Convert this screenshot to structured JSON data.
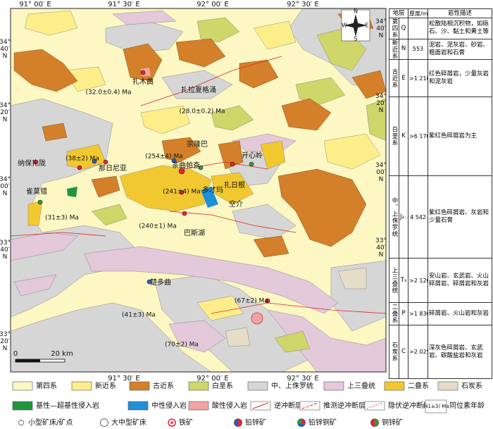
{
  "map": {
    "top_ticks": [
      "91° 00′ E",
      "91° 30′ E",
      "92° 00′ E",
      "92° 30′ E"
    ],
    "bottom_ticks": [
      "91° 30′ E",
      "92° 00′ E",
      "92° 30′ E"
    ],
    "left_ticks": [
      "34° 40′ N",
      "34° 20′ N",
      "34° 00′ N",
      "33° 40′ N",
      "33° 20′ N"
    ],
    "right_ticks": [
      "34° 40′ N",
      "34° 20′ N",
      "34° 00′ N",
      "33° 40′ N"
    ],
    "places": [
      "扎木曲",
      "扎拉夏格涌",
      "宗隆巴",
      "茶曲帕查",
      "那日尼亚",
      "纳保扎陇",
      "雀莫错",
      "多才玛",
      "开心岭",
      "扎日根",
      "空介",
      "巴斯湖",
      "楚多曲"
    ],
    "ages": [
      "(32.0±0.4) Ma",
      "(28.0±0.2) Ma",
      "(38±2) Ma",
      "(254±4) Ma",
      "(241±4) Ma",
      "(31±3) Ma",
      "(240±1) Ma",
      "(67±2) Ma",
      "(41±3) Ma",
      "(70±2) Ma"
    ],
    "scale": {
      "zero": "0",
      "label": "20 km"
    },
    "compass": {
      "n": "N",
      "s": "S",
      "w": "W",
      "e": "E"
    }
  },
  "table": {
    "header": {
      "strata": "地层",
      "thickness": "厚度/m",
      "lithology": "岩性描述"
    },
    "rows": [
      {
        "unit": "第四系",
        "code": "Q",
        "description": "松散陆相沉积物，如砾石、沙、黏土和黄土等"
      },
      {
        "unit": "新近系",
        "code": "N",
        "thickness": "553",
        "description": "泥岩、泥灰岩、砂岩、粗面岩和石膏"
      },
      {
        "unit": "古近系",
        "code": "E",
        "thickness": ">1 210",
        "description": "红色碎屑岩，少量灰岩和泥灰岩"
      },
      {
        "unit": "白垩系",
        "code": "K",
        "thickness": ">6 170",
        "description": "紫红色碎屑岩为主"
      },
      {
        "unit": "中、上侏罗统",
        "code": "J₂₋₃",
        "thickness": "4 542",
        "description": "紫红色碎屑岩、灰岩和少量石膏"
      },
      {
        "unit": "上三叠统",
        "code": "T₃",
        "thickness": ">2 120",
        "description": "安山岩、玄武岩、火山碎屑岩、碎屑岩和灰岩"
      },
      {
        "unit": "二叠系",
        "code": "P",
        "thickness": ">1 830",
        "description": "碎屑岩、火山岩和灰岩"
      },
      {
        "unit": "石炭系",
        "code": "C",
        "thickness": ">2 025",
        "description": "深灰色碎屑岩、玄武岩、碳酸盐岩和灰岩"
      }
    ]
  },
  "legend": {
    "formations": [
      "第四系",
      "新近系",
      "古近系",
      "白垩系",
      "中、上侏罗统",
      "上三叠统",
      "二叠系",
      "石炭系"
    ],
    "intrusions": [
      "基性—超基性侵入岩",
      "中性侵入岩",
      "酸性侵入岩"
    ],
    "faults": [
      "逆冲断层",
      "推测逆冲断层",
      "隐伏逆冲断层"
    ],
    "age_sample": "(41±3) Ma",
    "age_label": "同位素年龄",
    "deposits": [
      "小型矿床/矿点",
      "大中型矿床",
      "铁矿",
      "铅锌矿",
      "铅锌铜矿",
      "铜锌矿"
    ]
  }
}
